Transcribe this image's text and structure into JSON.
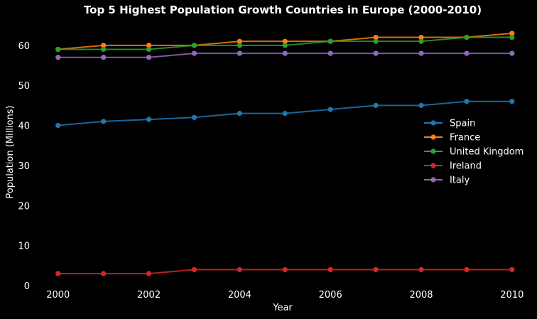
{
  "chart_data": {
    "type": "line",
    "title": "Top 5 Highest Population Growth Countries in Europe (2000-2010)",
    "xlabel": "Year",
    "ylabel": "Population (Millions)",
    "x": [
      2000,
      2001,
      2002,
      2003,
      2004,
      2005,
      2006,
      2007,
      2008,
      2009,
      2010
    ],
    "x_ticks": [
      "2000",
      "2002",
      "2004",
      "2006",
      "2008",
      "2010"
    ],
    "y_ticks": [
      "0",
      "10",
      "20",
      "30",
      "40",
      "50",
      "60"
    ],
    "xlim": [
      1999.55,
      2010.3
    ],
    "ylim": [
      0,
      66
    ],
    "grid": false,
    "legend_position": "right",
    "series": [
      {
        "name": "Spain",
        "color": "#1f77b4",
        "values": [
          40,
          41,
          41.5,
          42,
          43,
          43,
          44,
          45,
          45,
          46,
          46
        ]
      },
      {
        "name": "France",
        "color": "#ff7f0e",
        "values": [
          59,
          60,
          60,
          60,
          61,
          61,
          61,
          62,
          62,
          62,
          63
        ]
      },
      {
        "name": "United Kingdom",
        "color": "#2ca02c",
        "values": [
          59,
          59,
          59,
          60,
          60,
          60,
          61,
          61,
          61,
          62,
          62
        ]
      },
      {
        "name": "Ireland",
        "color": "#d62728",
        "values": [
          3,
          3,
          3,
          4,
          4,
          4,
          4,
          4,
          4,
          4,
          4
        ]
      },
      {
        "name": "Italy",
        "color": "#9467bd",
        "values": [
          57,
          57,
          57,
          58,
          58,
          58,
          58,
          58,
          58,
          58,
          58
        ]
      }
    ]
  }
}
